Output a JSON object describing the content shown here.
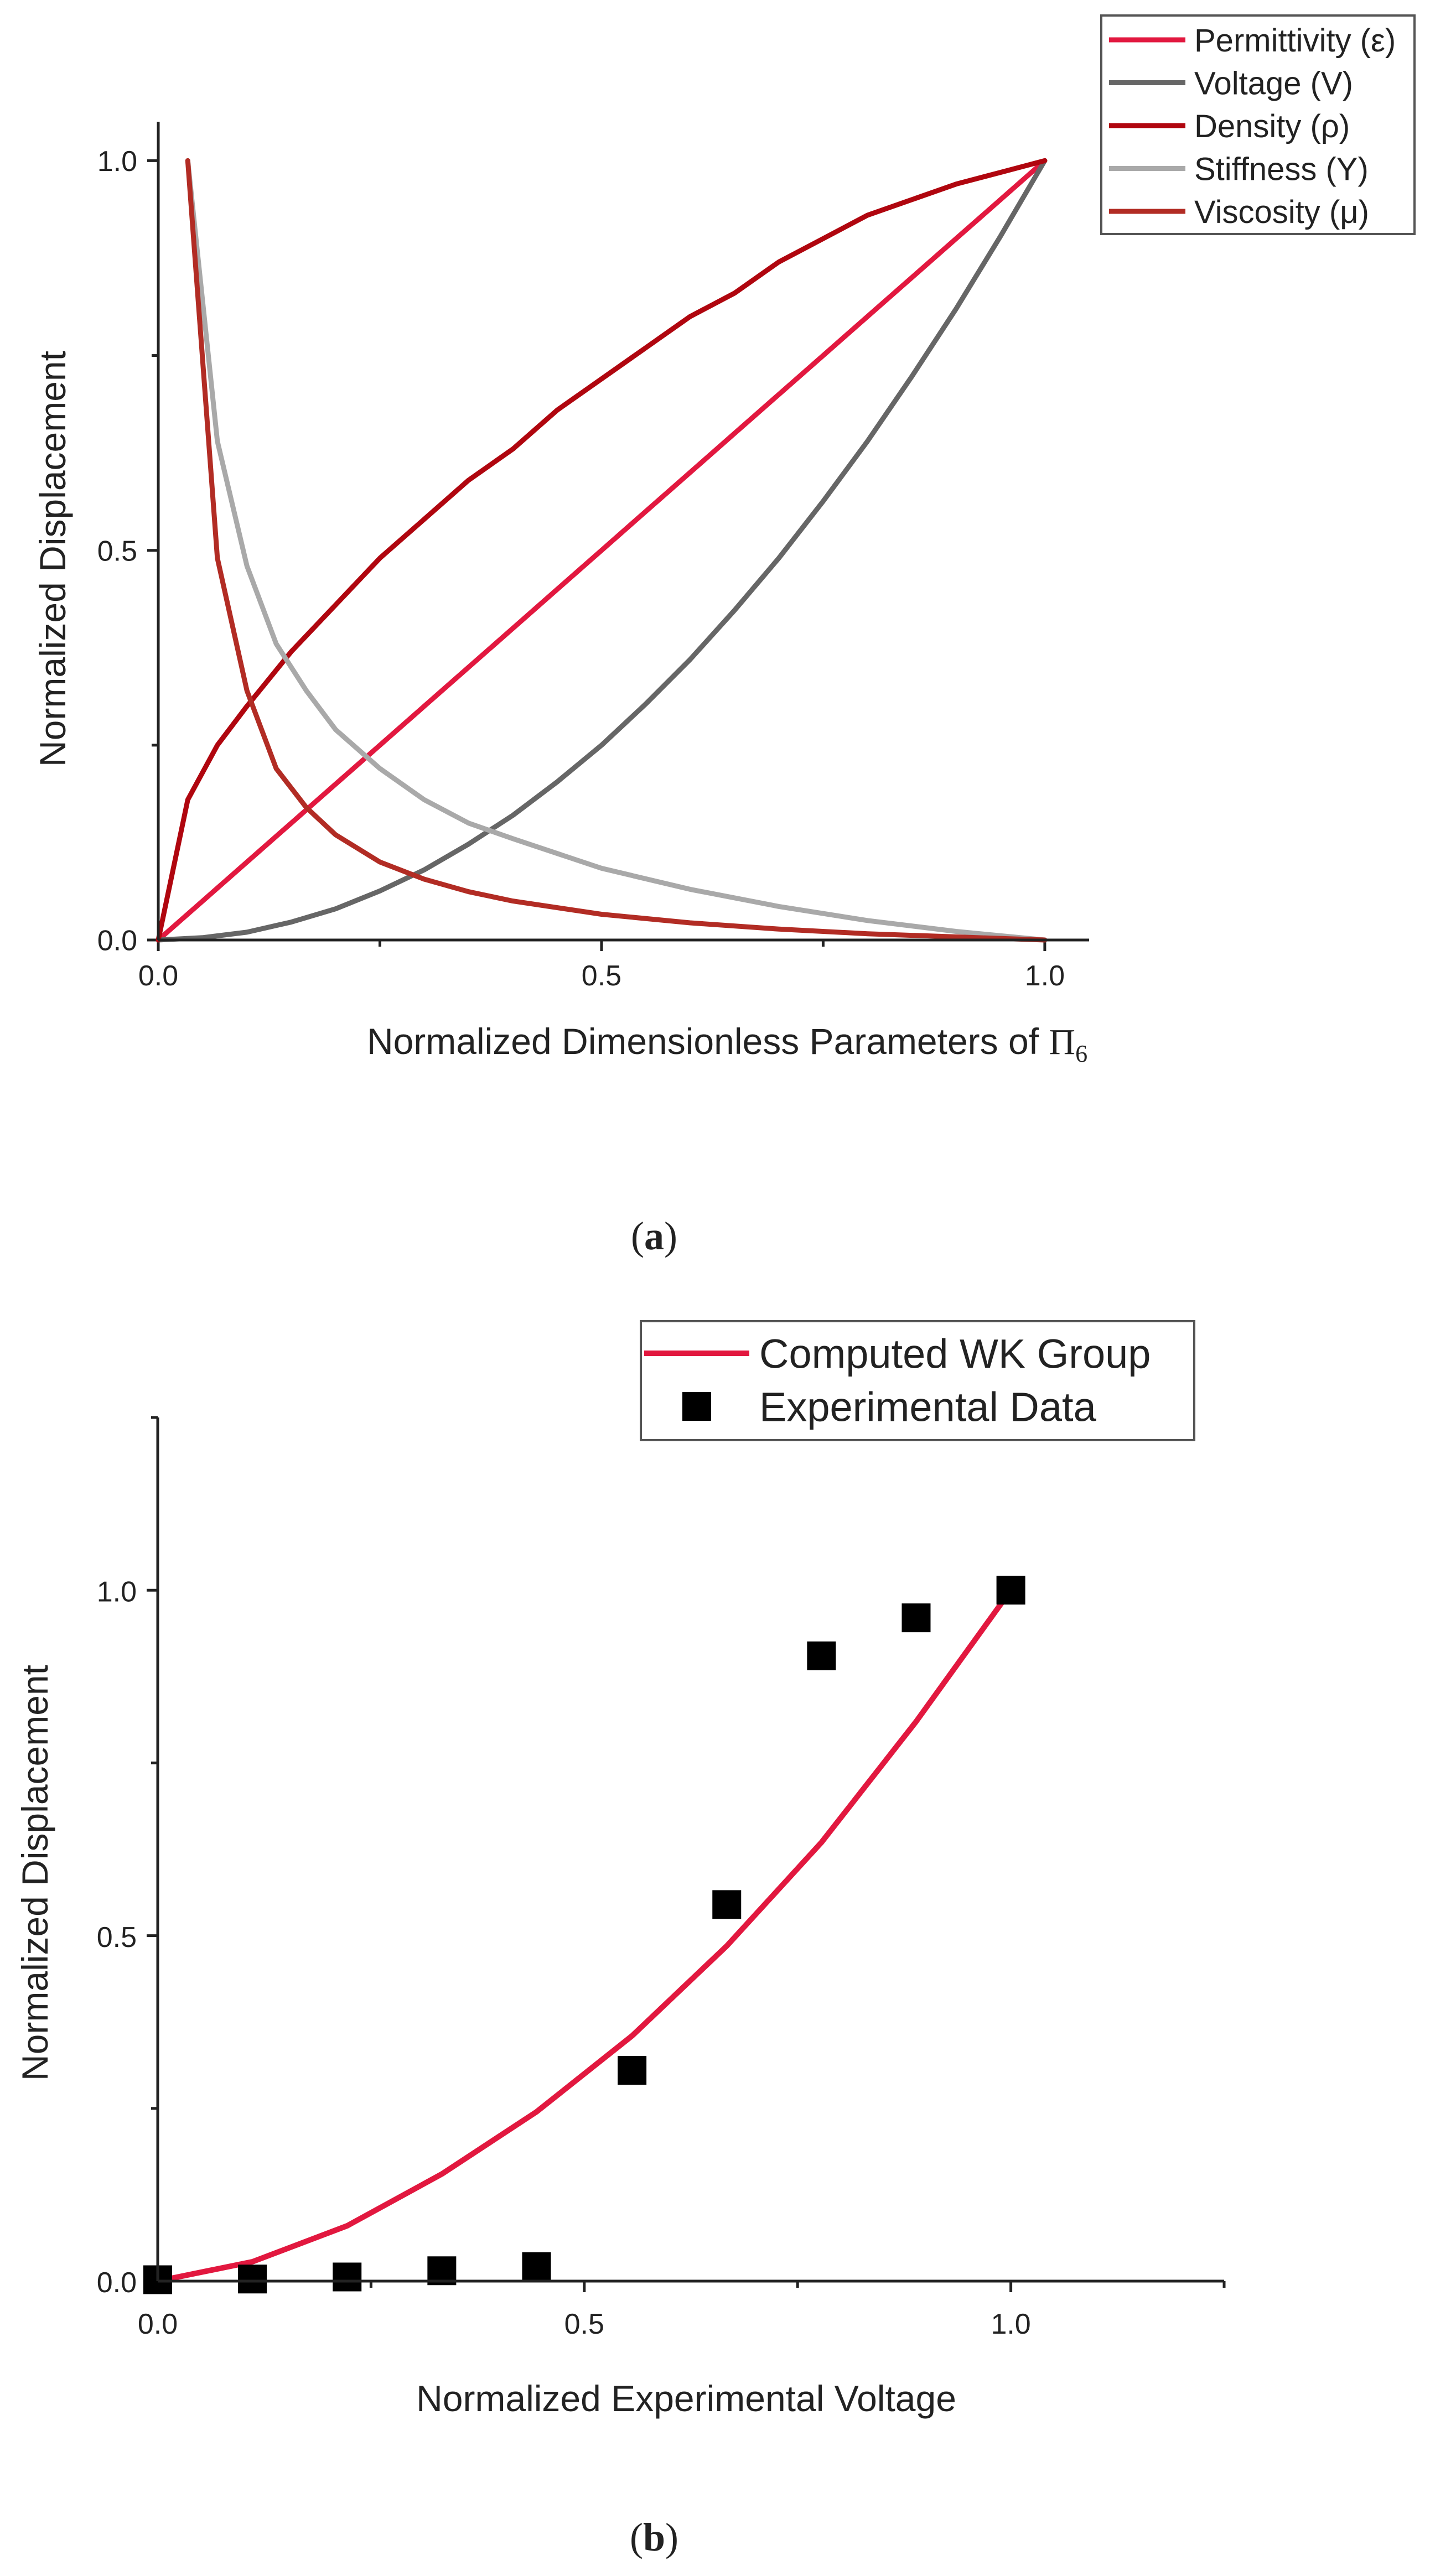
{
  "chart_data": [
    {
      "type": "line",
      "caption": "a",
      "xlabel": "Normalized Dimensionless Parameters of",
      "xlabel_symbol": "Π",
      "xlabel_subscript": "6",
      "ylabel": "Normalized Displacement",
      "xlim": [
        0,
        1.05
      ],
      "ylim": [
        0,
        1.05
      ],
      "xticks": [
        0.0,
        0.5,
        1.0
      ],
      "xtick_labels": [
        "0.0",
        "0.5",
        "1.0"
      ],
      "yticks": [
        0.0,
        0.5,
        1.0
      ],
      "ytick_labels": [
        "0.0",
        "0.5",
        "1.0"
      ],
      "legend_position": "top-right",
      "series": [
        {
          "name": "Permittivity (ε)",
          "color": "#e2183f",
          "x": [
            0,
            0.05,
            0.1,
            0.15,
            0.2,
            0.25,
            0.3,
            0.35,
            0.4,
            0.45,
            0.5,
            0.55,
            0.6,
            0.65,
            0.7,
            0.75,
            0.8,
            0.85,
            0.9,
            0.95,
            1.0
          ],
          "y": [
            0,
            0.05,
            0.1,
            0.15,
            0.2,
            0.25,
            0.3,
            0.35,
            0.4,
            0.45,
            0.5,
            0.55,
            0.6,
            0.65,
            0.7,
            0.75,
            0.8,
            0.85,
            0.9,
            0.95,
            1.0
          ]
        },
        {
          "name": "Voltage (V)",
          "color": "#666666",
          "x": [
            0,
            0.05,
            0.1,
            0.15,
            0.2,
            0.25,
            0.3,
            0.35,
            0.4,
            0.45,
            0.5,
            0.55,
            0.6,
            0.65,
            0.7,
            0.75,
            0.8,
            0.85,
            0.9,
            0.95,
            1.0
          ],
          "y": [
            0,
            0.003,
            0.01,
            0.023,
            0.04,
            0.063,
            0.09,
            0.123,
            0.16,
            0.203,
            0.25,
            0.303,
            0.36,
            0.423,
            0.49,
            0.563,
            0.64,
            0.723,
            0.81,
            0.903,
            1.0
          ]
        },
        {
          "name": "Density (ρ)",
          "color": "#b0060f",
          "x": [
            0,
            0.0333,
            0.0667,
            0.1,
            0.15,
            0.2,
            0.25,
            0.3,
            0.35,
            0.4,
            0.45,
            0.5,
            0.55,
            0.6,
            0.65,
            0.7,
            0.75,
            0.8,
            0.85,
            0.9,
            0.95,
            1.0
          ],
          "y": [
            0,
            0.18,
            0.25,
            0.3,
            0.37,
            0.43,
            0.49,
            0.54,
            0.59,
            0.63,
            0.68,
            0.72,
            0.76,
            0.8,
            0.83,
            0.87,
            0.9,
            0.93,
            0.95,
            0.97,
            0.985,
            1.0
          ]
        },
        {
          "name": "Stiffness (Y)",
          "color": "#a9a9a9",
          "x": [
            0.0333,
            0.0667,
            0.1,
            0.133,
            0.167,
            0.2,
            0.25,
            0.3,
            0.35,
            0.4,
            0.5,
            0.6,
            0.7,
            0.8,
            0.9,
            1.0
          ],
          "y": [
            1.0,
            0.64,
            0.48,
            0.38,
            0.32,
            0.27,
            0.22,
            0.18,
            0.15,
            0.13,
            0.092,
            0.065,
            0.043,
            0.025,
            0.011,
            0.0
          ]
        },
        {
          "name": "Viscosity (μ)",
          "color": "#b22c24",
          "x": [
            0.0333,
            0.0667,
            0.1,
            0.133,
            0.167,
            0.2,
            0.25,
            0.3,
            0.35,
            0.4,
            0.5,
            0.6,
            0.7,
            0.8,
            0.9,
            1.0
          ],
          "y": [
            1.0,
            0.49,
            0.32,
            0.22,
            0.17,
            0.135,
            0.1,
            0.078,
            0.062,
            0.05,
            0.033,
            0.022,
            0.014,
            0.008,
            0.004,
            0.0
          ]
        }
      ]
    },
    {
      "type": "scatter",
      "caption": "b",
      "xlabel": "Normalized Experimental Voltage",
      "ylabel": "Normalized Displacement",
      "xlim": [
        0,
        1.25
      ],
      "ylim": [
        0,
        1.25
      ],
      "xticks": [
        0.0,
        0.5,
        1.0
      ],
      "xtick_labels": [
        "0.0",
        "0.5",
        "1.0"
      ],
      "yticks": [
        0.0,
        0.5,
        1.0
      ],
      "ytick_labels": [
        "0.0",
        "0.5",
        "1.0"
      ],
      "legend_position": "top-right",
      "series": [
        {
          "name": "Computed WK Group",
          "type": "line",
          "color": "#e2183f",
          "x": [
            0,
            0.111,
            0.222,
            0.333,
            0.444,
            0.556,
            0.667,
            0.778,
            0.889,
            1.0
          ],
          "y": [
            0,
            0.028,
            0.08,
            0.155,
            0.245,
            0.355,
            0.485,
            0.635,
            0.81,
            1.0
          ]
        },
        {
          "name": "Experimental Data",
          "type": "scatter",
          "color": "#000000",
          "marker": "square",
          "x": [
            0,
            0.111,
            0.222,
            0.333,
            0.444,
            0.556,
            0.667,
            0.778,
            0.889,
            1.0
          ],
          "y": [
            0.002,
            0.003,
            0.006,
            0.015,
            0.021,
            0.305,
            0.545,
            0.905,
            0.96,
            1.0
          ]
        }
      ]
    }
  ]
}
